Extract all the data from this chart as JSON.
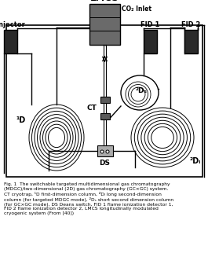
{
  "lmcs_label": "LMCS",
  "co2_label": "CO₂ Inlet",
  "injector_label": "Injector",
  "fid1_label": "FID 1",
  "fid2_label": "FID 2",
  "ct_label": "CT",
  "ds_label": "DS",
  "d1_label": "¹D",
  "d2s_label": "²Dₛ",
  "d2l_label": "²Dₗ",
  "caption_bold": "Fig. 1",
  "caption_rest": "  The switchable targeted multidimensional gas chromatography\n(MDGC)/two-dimensional (2D) gas chromatography (GC×GC) system.\nCT cryotrap, ¹D first-dimension column, ²Dₗ long second-dimension\ncolumn (for targeted MDGC mode), ²Dₛ short second dimension column\n(for GC×GC mode), DS Deans switch, FID 1 flame ionization detector 1,\nFID 2 flame ionization detector 2, LMCS longitudinally modulated\ncryogenic system (From [40])",
  "bg_color": "#ffffff",
  "dark_block": "#2a2a2a",
  "gray_lmcs": "#6a6a6a",
  "gray_ct": "#5a5a5a"
}
